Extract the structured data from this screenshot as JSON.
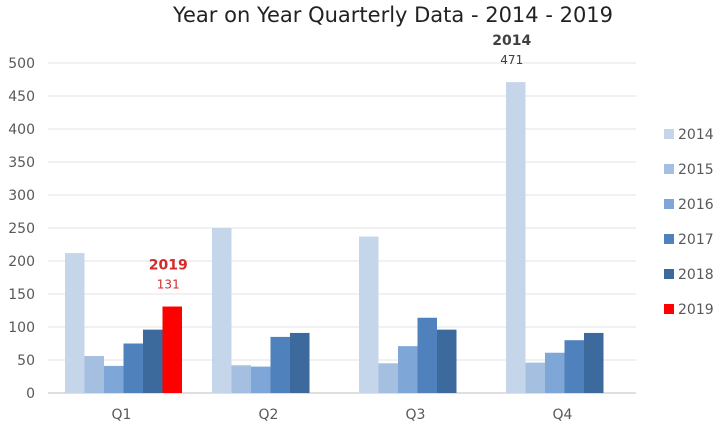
{
  "chart_data": {
    "type": "bar",
    "title": "Year on Year Quarterly Data - 2014 - 2019",
    "categories": [
      "Q1",
      "Q2",
      "Q3",
      "Q4"
    ],
    "series": [
      {
        "name": "2014",
        "color": "#c5d5ea",
        "values": [
          212,
          250,
          237,
          471
        ]
      },
      {
        "name": "2015",
        "color": "#a5bfe0",
        "values": [
          56,
          42,
          45,
          46
        ]
      },
      {
        "name": "2016",
        "color": "#7ea6d6",
        "values": [
          41,
          40,
          71,
          61
        ]
      },
      {
        "name": "2017",
        "color": "#4f81bd",
        "values": [
          75,
          85,
          114,
          80
        ]
      },
      {
        "name": "2018",
        "color": "#3c6a9c",
        "values": [
          96,
          91,
          96,
          91
        ]
      },
      {
        "name": "2019",
        "color": "#ff0000",
        "values": [
          131,
          null,
          null,
          null
        ]
      }
    ],
    "ylim": [
      0,
      500
    ],
    "yticks": [
      0,
      50,
      100,
      150,
      200,
      250,
      300,
      350,
      400,
      450,
      500
    ],
    "grid": true,
    "legend_position": "right",
    "annotations": [
      {
        "series": "2014",
        "category": "Q4",
        "label": "2014",
        "value_label": "471",
        "color": "#404040"
      },
      {
        "series": "2019",
        "category": "Q1",
        "label": "2019",
        "value_label": "131",
        "color": "#d42a2a"
      }
    ]
  }
}
